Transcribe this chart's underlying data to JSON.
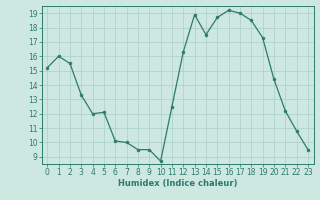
{
  "x": [
    0,
    1,
    2,
    3,
    4,
    5,
    6,
    7,
    8,
    9,
    10,
    11,
    12,
    13,
    14,
    15,
    16,
    17,
    18,
    19,
    20,
    21,
    22,
    23
  ],
  "y": [
    15.2,
    16.0,
    15.5,
    13.3,
    12.0,
    12.1,
    10.1,
    10.0,
    9.5,
    9.5,
    8.7,
    12.5,
    16.3,
    18.9,
    17.5,
    18.7,
    19.2,
    19.0,
    18.5,
    17.3,
    14.4,
    12.2,
    10.8,
    9.5
  ],
  "line_color": "#2d7a6e",
  "marker": "o",
  "markersize": 2.0,
  "linewidth": 0.9,
  "xlabel": "Humidex (Indice chaleur)",
  "xlim": [
    -0.5,
    23.5
  ],
  "ylim": [
    8.5,
    19.5
  ],
  "yticks": [
    9,
    10,
    11,
    12,
    13,
    14,
    15,
    16,
    17,
    18,
    19
  ],
  "xticks": [
    0,
    1,
    2,
    3,
    4,
    5,
    6,
    7,
    8,
    9,
    10,
    11,
    12,
    13,
    14,
    15,
    16,
    17,
    18,
    19,
    20,
    21,
    22,
    23
  ],
  "bg_color": "#cce8e0",
  "grid_color": "#aacfc7",
  "line_label_color": "#2d7a6e",
  "xlabel_fontsize": 6.0,
  "tick_fontsize": 5.5
}
